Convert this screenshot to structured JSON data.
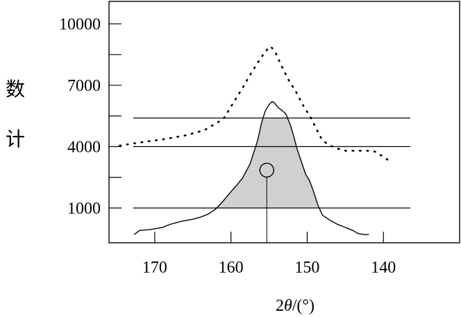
{
  "chart_data": {
    "type": "line",
    "xlabel_main": "2",
    "xlabel_theta": "θ",
    "xlabel_unit": "/(°)",
    "ylabel_chars": [
      "计",
      "数"
    ],
    "x_reversed": true,
    "xlim": [
      176,
      130
    ],
    "ylim": [
      -700,
      11100
    ],
    "x_ticks": [
      170,
      160,
      150,
      140
    ],
    "x_tick_labels": [
      "170",
      "160",
      "150",
      "140"
    ],
    "y_ticks": [
      1000,
      4000,
      7000,
      10000
    ],
    "y_tick_labels": [
      "1000",
      "4000",
      "7000",
      "10000"
    ],
    "y_minor_ticks": [
      2500,
      5500,
      8500
    ],
    "reference_lines": [
      1000,
      4000,
      5400
    ],
    "series": [
      {
        "style": "dotted",
        "x": [
          174.6,
          172,
          169,
          166,
          163.5,
          161,
          159.5,
          158.5,
          157.5,
          156.5,
          155.5,
          154.8,
          154.2,
          153.5,
          152.5,
          151.5,
          150.5,
          149.5,
          148.5,
          148,
          147,
          146,
          145,
          144,
          143,
          142,
          141,
          140.4,
          139.8,
          139.4
        ],
        "y": [
          4050,
          4200,
          4350,
          4550,
          4800,
          5350,
          6250,
          6850,
          7500,
          8100,
          8650,
          8900,
          8650,
          8050,
          7300,
          6700,
          6000,
          5400,
          4650,
          4300,
          4050,
          3900,
          3800,
          3800,
          3800,
          3800,
          3750,
          3600,
          3450,
          3350
        ]
      },
      {
        "style": "solid",
        "x": [
          172.7,
          172,
          170.5,
          169,
          168,
          166.5,
          165,
          164,
          163,
          162,
          161,
          160,
          159.5,
          158.5,
          157.5,
          156.5,
          156,
          155.5,
          155,
          154.6,
          154.3,
          153.8,
          153.4,
          152.8,
          152.2,
          151.8,
          151.3,
          150.8,
          150.2,
          149.7,
          149.2,
          148.6,
          148,
          147,
          146,
          145,
          144,
          143.3,
          142.5,
          141.9
        ],
        "y": [
          -300,
          -100,
          -50,
          50,
          200,
          350,
          450,
          550,
          700,
          950,
          1350,
          1800,
          2000,
          2450,
          3150,
          4300,
          5150,
          5750,
          6050,
          6200,
          6150,
          5900,
          5800,
          5600,
          5050,
          4550,
          3850,
          3300,
          2650,
          2350,
          1850,
          1150,
          650,
          400,
          200,
          50,
          -100,
          -250,
          -300,
          -300
        ]
      }
    ],
    "shaded_band": {
      "y_min": 1000,
      "y_max": 5400,
      "fill": "#d0d0d0"
    },
    "marker": {
      "x": 155.3,
      "y": 2850,
      "stem_to": -700,
      "shape": "circle"
    },
    "colors": {
      "line": "#000000",
      "fill": "#d0d0d0",
      "background": "#ffffff"
    }
  }
}
